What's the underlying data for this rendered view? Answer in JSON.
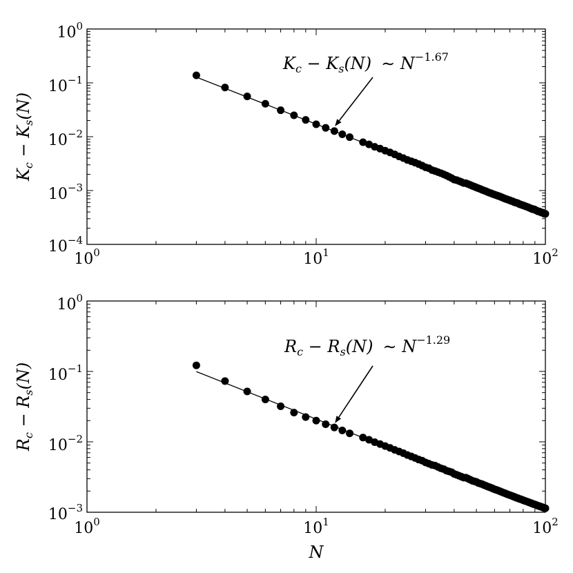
{
  "chart_data": [
    {
      "type": "scatter",
      "xscale": "log",
      "yscale": "log",
      "xlim": [
        1,
        100
      ],
      "ylim": [
        0.0001,
        1
      ],
      "grid": false,
      "xlabel": "",
      "ylabel": {
        "base": "K",
        "sub1": "c",
        "minus": " − ",
        "base2": "K",
        "sub2": "s",
        "arg": "(N)"
      },
      "x_tick_labels": [
        {
          "base": "10",
          "exp": "0",
          "value": 1
        },
        {
          "base": "10",
          "exp": "1",
          "value": 10
        },
        {
          "base": "10",
          "exp": "2",
          "value": 100
        }
      ],
      "y_tick_labels": [
        {
          "base": "10",
          "exp": "0",
          "value": 1
        },
        {
          "base": "10",
          "exp": "−1",
          "value": 0.1
        },
        {
          "base": "10",
          "exp": "−2",
          "value": 0.01
        },
        {
          "base": "10",
          "exp": "−3",
          "value": 0.001
        },
        {
          "base": "10",
          "exp": "−4",
          "value": 0.0001
        }
      ],
      "fit": {
        "exponent": -1.67,
        "amplitude": 0.8,
        "x_range": [
          3,
          100
        ]
      },
      "points": [
        {
          "x": 3,
          "y": 0.138
        },
        {
          "x": 4,
          "y": 0.082
        },
        {
          "x": 5,
          "y": 0.056
        },
        {
          "x": 6,
          "y": 0.041
        },
        {
          "x": 7,
          "y": 0.031
        },
        {
          "x": 8,
          "y": 0.025
        },
        {
          "x": 9,
          "y": 0.0205
        },
        {
          "x": 10,
          "y": 0.017
        },
        {
          "x": 11,
          "y": 0.0146
        },
        {
          "x": 12,
          "y": 0.0127
        },
        {
          "x": 13,
          "y": 0.0111
        },
        {
          "x": 14,
          "y": 0.0098
        },
        {
          "x": 16,
          "y": 0.0079
        },
        {
          "x": 17,
          "y": 0.0072
        },
        {
          "x": 18,
          "y": 0.0065
        },
        {
          "x": 19,
          "y": 0.006
        },
        {
          "x": 20,
          "y": 0.0055
        },
        {
          "x": 21,
          "y": 0.0051
        },
        {
          "x": 22,
          "y": 0.0047
        },
        {
          "x": 23,
          "y": 0.0043
        },
        {
          "x": 24,
          "y": 0.004
        },
        {
          "x": 25,
          "y": 0.0037
        },
        {
          "x": 26,
          "y": 0.0035
        },
        {
          "x": 27,
          "y": 0.0033
        },
        {
          "x": 28,
          "y": 0.0031
        },
        {
          "x": 29,
          "y": 0.0029
        },
        {
          "x": 30,
          "y": 0.0027
        },
        {
          "x": 31,
          "y": 0.0026
        },
        {
          "x": 32,
          "y": 0.0024
        },
        {
          "x": 33,
          "y": 0.0023
        },
        {
          "x": 34,
          "y": 0.0022
        },
        {
          "x": 35,
          "y": 0.0021
        },
        {
          "x": 36,
          "y": 0.002
        },
        {
          "x": 37,
          "y": 0.0019
        },
        {
          "x": 38,
          "y": 0.0018
        },
        {
          "x": 39,
          "y": 0.0017
        },
        {
          "x": 40,
          "y": 0.0016
        },
        {
          "x": 41,
          "y": 0.00156
        },
        {
          "x": 42,
          "y": 0.0015
        },
        {
          "x": 43,
          "y": 0.00144
        },
        {
          "x": 44,
          "y": 0.00138
        },
        {
          "x": 45,
          "y": 0.00137
        },
        {
          "x": 46,
          "y": 0.00132
        },
        {
          "x": 47,
          "y": 0.00127
        },
        {
          "x": 48,
          "y": 0.00122
        },
        {
          "x": 49,
          "y": 0.00118
        },
        {
          "x": 50,
          "y": 0.00114
        },
        {
          "x": 51,
          "y": 0.0011
        },
        {
          "x": 52,
          "y": 0.00107
        },
        {
          "x": 53,
          "y": 0.00103
        },
        {
          "x": 54,
          "y": 0.001
        },
        {
          "x": 55,
          "y": 0.00097
        },
        {
          "x": 56,
          "y": 0.00094
        },
        {
          "x": 57,
          "y": 0.00091
        },
        {
          "x": 58,
          "y": 0.00089
        },
        {
          "x": 59,
          "y": 0.00086
        },
        {
          "x": 60,
          "y": 0.00084
        },
        {
          "x": 61,
          "y": 0.00082
        },
        {
          "x": 62,
          "y": 0.0008
        },
        {
          "x": 63,
          "y": 0.00078
        },
        {
          "x": 64,
          "y": 0.00076
        },
        {
          "x": 65,
          "y": 0.00074
        },
        {
          "x": 66,
          "y": 0.00072
        },
        {
          "x": 67,
          "y": 0.0007
        },
        {
          "x": 68,
          "y": 0.00069
        },
        {
          "x": 69,
          "y": 0.00067
        },
        {
          "x": 70,
          "y": 0.00066
        },
        {
          "x": 71,
          "y": 0.00064
        },
        {
          "x": 72,
          "y": 0.00063
        },
        {
          "x": 73,
          "y": 0.00061
        },
        {
          "x": 74,
          "y": 0.0006
        },
        {
          "x": 75,
          "y": 0.00059
        },
        {
          "x": 76,
          "y": 0.00058
        },
        {
          "x": 77,
          "y": 0.00056
        },
        {
          "x": 78,
          "y": 0.00055
        },
        {
          "x": 79,
          "y": 0.00054
        },
        {
          "x": 80,
          "y": 0.00053
        },
        {
          "x": 81,
          "y": 0.00052
        },
        {
          "x": 82,
          "y": 0.00051
        },
        {
          "x": 83,
          "y": 0.0005
        },
        {
          "x": 84,
          "y": 0.00049
        },
        {
          "x": 85,
          "y": 0.00048
        },
        {
          "x": 86,
          "y": 0.00047
        },
        {
          "x": 87,
          "y": 0.00046
        },
        {
          "x": 88,
          "y": 0.00045
        },
        {
          "x": 89,
          "y": 0.00045
        },
        {
          "x": 90,
          "y": 0.00044
        },
        {
          "x": 91,
          "y": 0.00043
        },
        {
          "x": 92,
          "y": 0.00042
        },
        {
          "x": 93,
          "y": 0.00041
        },
        {
          "x": 94,
          "y": 0.00041
        },
        {
          "x": 95,
          "y": 0.0004
        },
        {
          "x": 96,
          "y": 0.00039
        },
        {
          "x": 97,
          "y": 0.00039
        },
        {
          "x": 98,
          "y": 0.00038
        },
        {
          "x": 99,
          "y": 0.00037
        },
        {
          "x": 100,
          "y": 0.00037
        }
      ],
      "annotation": {
        "text": {
          "base": "K",
          "sub1": "c",
          "minus": " − ",
          "base2": "K",
          "sub2": "s",
          "arg": "(N)",
          "sim": "∼ ",
          "pbase": "N",
          "pexp": "−1.67"
        },
        "arrow_target": {
          "x": 11.8,
          "y": 0.0135
        }
      }
    },
    {
      "type": "scatter",
      "xscale": "log",
      "yscale": "log",
      "xlim": [
        1,
        100
      ],
      "ylim": [
        0.001,
        1
      ],
      "grid": false,
      "xlabel": "N",
      "ylabel": {
        "base": "R",
        "sub1": "c",
        "minus": " − ",
        "base2": "R",
        "sub2": "s",
        "arg": "(N)"
      },
      "x_tick_labels": [
        {
          "base": "10",
          "exp": "0",
          "value": 1
        },
        {
          "base": "10",
          "exp": "1",
          "value": 10
        },
        {
          "base": "10",
          "exp": "2",
          "value": 100
        }
      ],
      "y_tick_labels": [
        {
          "base": "10",
          "exp": "0",
          "value": 1
        },
        {
          "base": "10",
          "exp": "−1",
          "value": 0.1
        },
        {
          "base": "10",
          "exp": "−2",
          "value": 0.01
        },
        {
          "base": "10",
          "exp": "−3",
          "value": 0.001
        }
      ],
      "fit": {
        "exponent": -1.29,
        "amplitude": 0.41,
        "x_range": [
          3,
          100
        ]
      },
      "points": [
        {
          "x": 3,
          "y": 0.122
        },
        {
          "x": 4,
          "y": 0.073
        },
        {
          "x": 5,
          "y": 0.052
        },
        {
          "x": 6,
          "y": 0.04
        },
        {
          "x": 7,
          "y": 0.032
        },
        {
          "x": 8,
          "y": 0.026
        },
        {
          "x": 9,
          "y": 0.0225
        },
        {
          "x": 10,
          "y": 0.02
        },
        {
          "x": 11,
          "y": 0.0178
        },
        {
          "x": 12,
          "y": 0.016
        },
        {
          "x": 13,
          "y": 0.0145
        },
        {
          "x": 14,
          "y": 0.0132
        },
        {
          "x": 16,
          "y": 0.0115
        },
        {
          "x": 17,
          "y": 0.0107
        },
        {
          "x": 18,
          "y": 0.0099
        },
        {
          "x": 19,
          "y": 0.0093
        },
        {
          "x": 20,
          "y": 0.0087
        },
        {
          "x": 21,
          "y": 0.0082
        },
        {
          "x": 22,
          "y": 0.0077
        },
        {
          "x": 23,
          "y": 0.0073
        },
        {
          "x": 24,
          "y": 0.0069
        },
        {
          "x": 25,
          "y": 0.0065
        },
        {
          "x": 26,
          "y": 0.0062
        },
        {
          "x": 27,
          "y": 0.0059
        },
        {
          "x": 28,
          "y": 0.0056
        },
        {
          "x": 29,
          "y": 0.0054
        },
        {
          "x": 30,
          "y": 0.0051
        },
        {
          "x": 31,
          "y": 0.0049
        },
        {
          "x": 32,
          "y": 0.0047
        },
        {
          "x": 33,
          "y": 0.0046
        },
        {
          "x": 34,
          "y": 0.0044
        },
        {
          "x": 35,
          "y": 0.0042
        },
        {
          "x": 36,
          "y": 0.0041
        },
        {
          "x": 37,
          "y": 0.0039
        },
        {
          "x": 38,
          "y": 0.0038
        },
        {
          "x": 39,
          "y": 0.0037
        },
        {
          "x": 40,
          "y": 0.0035
        },
        {
          "x": 41,
          "y": 0.0034
        },
        {
          "x": 42,
          "y": 0.0033
        },
        {
          "x": 43,
          "y": 0.0032
        },
        {
          "x": 44,
          "y": 0.0031
        },
        {
          "x": 45,
          "y": 0.0031
        },
        {
          "x": 46,
          "y": 0.003
        },
        {
          "x": 47,
          "y": 0.0029
        },
        {
          "x": 48,
          "y": 0.0028
        },
        {
          "x": 49,
          "y": 0.00275
        },
        {
          "x": 50,
          "y": 0.0027
        },
        {
          "x": 51,
          "y": 0.0026
        },
        {
          "x": 52,
          "y": 0.00255
        },
        {
          "x": 53,
          "y": 0.0025
        },
        {
          "x": 54,
          "y": 0.00243
        },
        {
          "x": 55,
          "y": 0.00238
        },
        {
          "x": 56,
          "y": 0.00232
        },
        {
          "x": 57,
          "y": 0.00227
        },
        {
          "x": 58,
          "y": 0.00222
        },
        {
          "x": 59,
          "y": 0.00217
        },
        {
          "x": 60,
          "y": 0.00212
        },
        {
          "x": 61,
          "y": 0.00208
        },
        {
          "x": 62,
          "y": 0.00204
        },
        {
          "x": 63,
          "y": 0.002
        },
        {
          "x": 64,
          "y": 0.00196
        },
        {
          "x": 65,
          "y": 0.00192
        },
        {
          "x": 66,
          "y": 0.00188
        },
        {
          "x": 67,
          "y": 0.00185
        },
        {
          "x": 68,
          "y": 0.00181
        },
        {
          "x": 69,
          "y": 0.00178
        },
        {
          "x": 70,
          "y": 0.00175
        },
        {
          "x": 71,
          "y": 0.00172
        },
        {
          "x": 72,
          "y": 0.00169
        },
        {
          "x": 73,
          "y": 0.00166
        },
        {
          "x": 74,
          "y": 0.00163
        },
        {
          "x": 75,
          "y": 0.0016
        },
        {
          "x": 76,
          "y": 0.00158
        },
        {
          "x": 77,
          "y": 0.00155
        },
        {
          "x": 78,
          "y": 0.00153
        },
        {
          "x": 79,
          "y": 0.00151
        },
        {
          "x": 80,
          "y": 0.00148
        },
        {
          "x": 81,
          "y": 0.00146
        },
        {
          "x": 82,
          "y": 0.00144
        },
        {
          "x": 83,
          "y": 0.00142
        },
        {
          "x": 84,
          "y": 0.0014
        },
        {
          "x": 85,
          "y": 0.00138
        },
        {
          "x": 86,
          "y": 0.00136
        },
        {
          "x": 87,
          "y": 0.00134
        },
        {
          "x": 88,
          "y": 0.00132
        },
        {
          "x": 89,
          "y": 0.0013
        },
        {
          "x": 90,
          "y": 0.00129
        },
        {
          "x": 91,
          "y": 0.00127
        },
        {
          "x": 92,
          "y": 0.00125
        },
        {
          "x": 93,
          "y": 0.00124
        },
        {
          "x": 94,
          "y": 0.00122
        },
        {
          "x": 95,
          "y": 0.00121
        },
        {
          "x": 96,
          "y": 0.00119
        },
        {
          "x": 97,
          "y": 0.00118
        },
        {
          "x": 98,
          "y": 0.00116
        },
        {
          "x": 99,
          "y": 0.00115
        },
        {
          "x": 100,
          "y": 0.00114
        }
      ],
      "annotation": {
        "text": {
          "base": "R",
          "sub1": "c",
          "minus": " − ",
          "base2": "R",
          "sub2": "s",
          "arg": "(N)",
          "sim": "∼ ",
          "pbase": "N",
          "pexp": "−1.29"
        },
        "arrow_target": {
          "x": 11.8,
          "y": 0.0165
        }
      }
    }
  ]
}
